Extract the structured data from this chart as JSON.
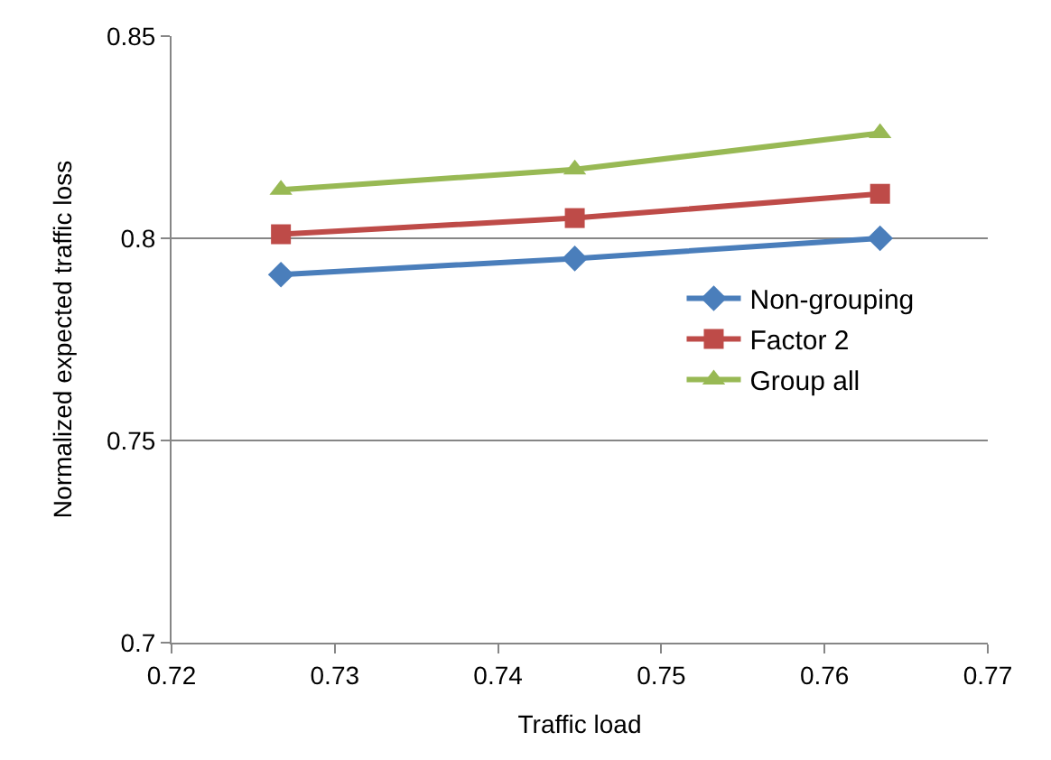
{
  "chart_data": {
    "type": "line",
    "xlabel": "Traffic load",
    "ylabel": "Normalized expected traffic loss",
    "x": [
      0.7267,
      0.7447,
      0.7634
    ],
    "series": [
      {
        "name": "Non-grouping",
        "color": "#4a7ebb",
        "values": [
          0.791,
          0.795,
          0.8
        ],
        "marker": "diamond"
      },
      {
        "name": "Factor 2",
        "color": "#be4b48",
        "values": [
          0.801,
          0.805,
          0.811
        ],
        "marker": "square"
      },
      {
        "name": "Group all",
        "color": "#98b954",
        "values": [
          0.812,
          0.817,
          0.826
        ],
        "marker": "triangle"
      }
    ],
    "xlim": [
      0.72,
      0.77
    ],
    "xticks": [
      0.72,
      0.73,
      0.74,
      0.75,
      0.76,
      0.77
    ],
    "ylim": [
      0.7,
      0.85
    ],
    "yticks": [
      0.7,
      0.75,
      0.8,
      0.85
    ],
    "grid": "y",
    "legend": "right",
    "line_style": "solid"
  }
}
